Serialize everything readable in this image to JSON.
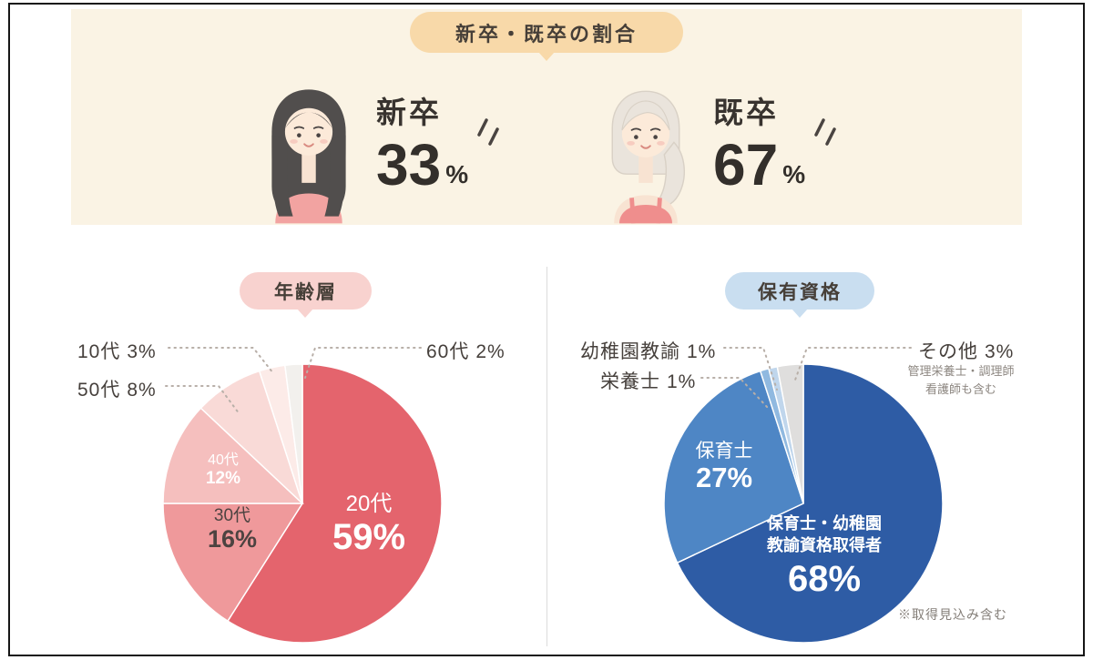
{
  "palette": {
    "band_bg": "#faf3e4",
    "badge_top_bg": "#f8d9a9",
    "badge_age_bg": "#f8d2cf",
    "badge_qual_bg": "#c9def0",
    "leader_line": "#b8afa8"
  },
  "chart_data": [
    {
      "type": "pie",
      "presentation": "stat-figures",
      "title": "新卒・既卒の割合",
      "labels": [
        "新卒",
        "既卒"
      ],
      "values": [
        33,
        67
      ],
      "value_labels": [
        "33",
        "67"
      ],
      "unit": "%"
    },
    {
      "type": "pie",
      "title": "年齢層",
      "labels": [
        "20代",
        "30代",
        "40代",
        "50代",
        "10代",
        "60代"
      ],
      "values": [
        59,
        16,
        12,
        8,
        3,
        2
      ],
      "value_labels": [
        "59%",
        "16%",
        "12%",
        "8%",
        "3%",
        "2%"
      ],
      "colors": [
        "#e4646d",
        "#ef999b",
        "#f5bfbe",
        "#f9dad7",
        "#fcebe8",
        "#f2f0ed"
      ],
      "start_angle": -90,
      "clockwise": true,
      "legend_position": "none"
    },
    {
      "type": "pie",
      "title": "保有資格",
      "labels": [
        "保育士・幼稚園教諭資格取得者",
        "保育士",
        "栄養士",
        "幼稚園教諭",
        "その他"
      ],
      "values": [
        68,
        27,
        1,
        1,
        3
      ],
      "value_labels": [
        "68%",
        "27%",
        "1%",
        "1%",
        "3%"
      ],
      "colors": [
        "#2e5ca5",
        "#4e86c5",
        "#90b9e0",
        "#c0d6ec",
        "#dfdedd"
      ],
      "main_label_lines": [
        "保育士・幼稚園",
        "教諭資格取得者"
      ],
      "other_detail_lines": [
        "管理栄養士・調理師",
        "看護師も含む"
      ],
      "footnote": "※取得見込み含む",
      "start_angle": -90,
      "clockwise": true,
      "legend_position": "none"
    }
  ]
}
